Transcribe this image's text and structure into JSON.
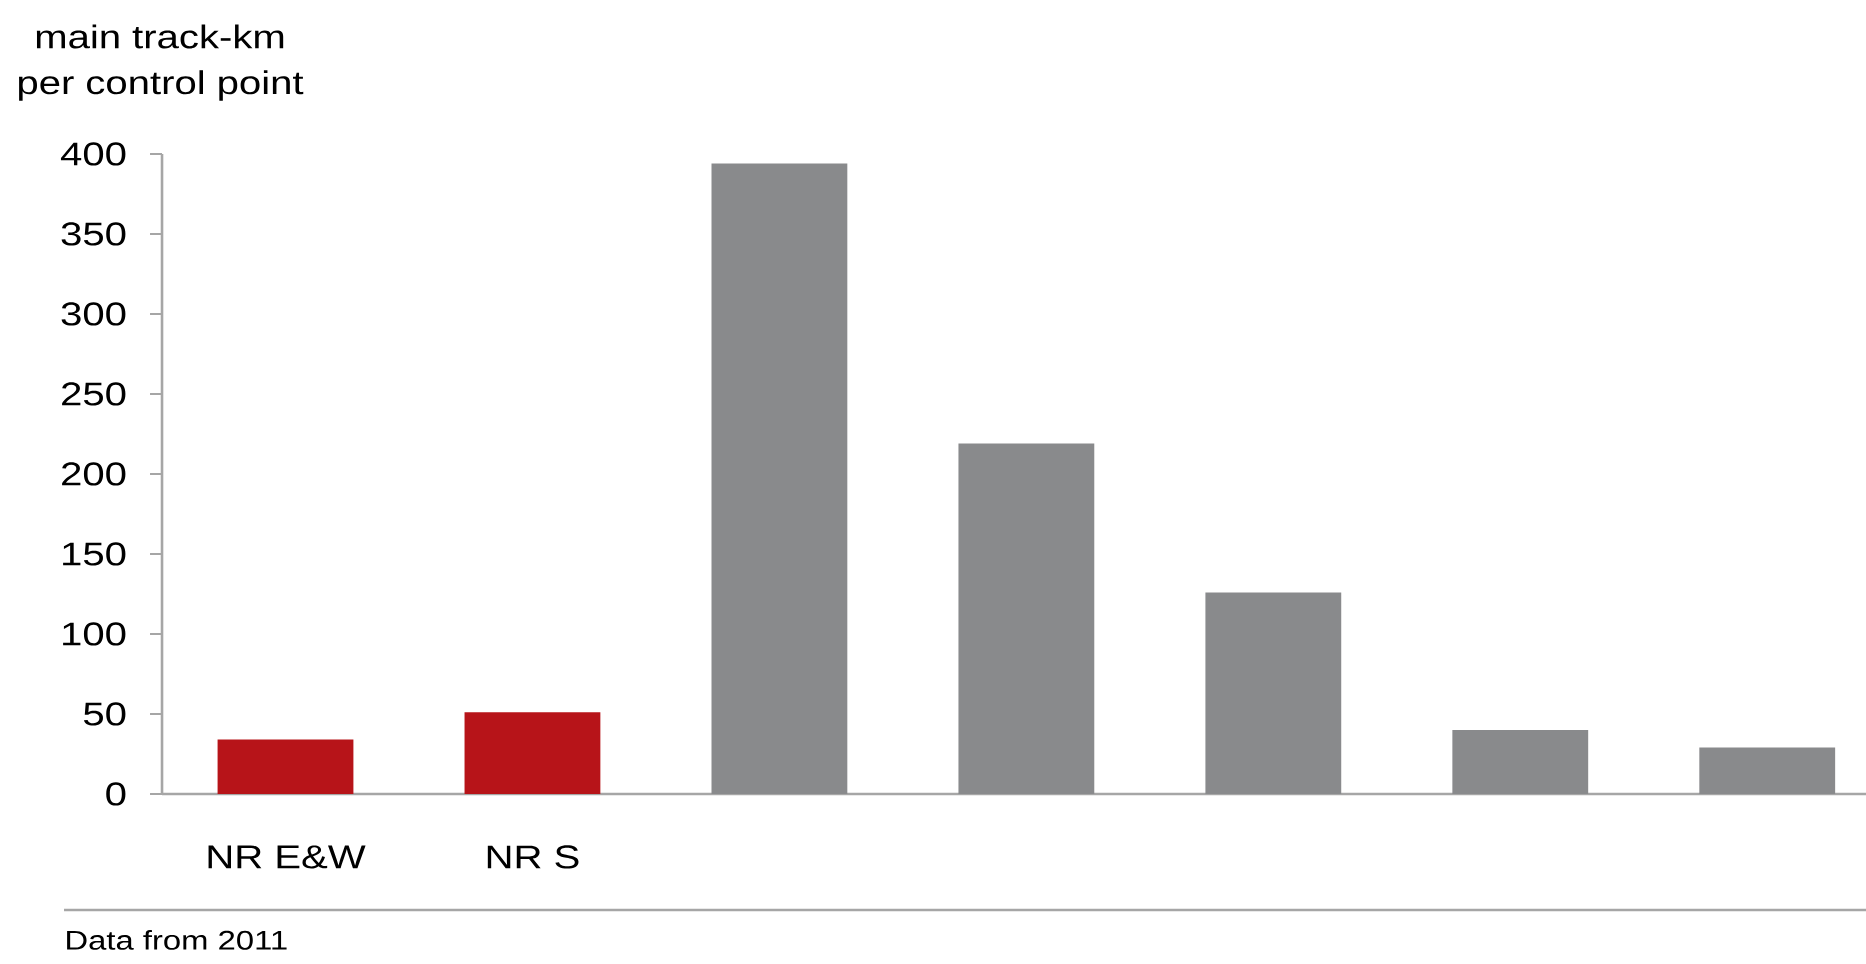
{
  "chart_data": {
    "type": "bar",
    "ylabel": "main track-km per control point",
    "categories": [
      "NR E&W",
      "NR S",
      null,
      null,
      null,
      null,
      null
    ],
    "values": [
      34,
      51,
      394,
      219,
      126,
      40,
      29
    ],
    "colors": [
      "#b71419",
      "#b71419",
      "#898a8c",
      "#898a8c",
      "#898a8c",
      "#898a8c",
      "#898a8c"
    ],
    "ylim": [
      0,
      400
    ],
    "yticks": [
      0,
      50,
      100,
      150,
      200,
      250,
      300,
      350,
      400
    ],
    "annotations": [
      "Data from 2011"
    ]
  }
}
